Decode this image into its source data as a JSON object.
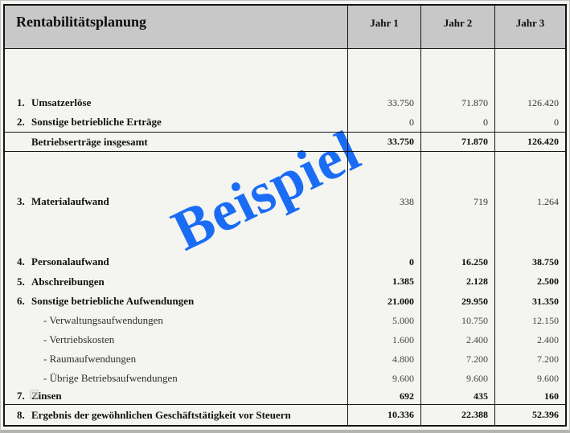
{
  "header": {
    "title": "Rentabilitätsplanung",
    "columns": [
      "Jahr 1",
      "Jahr 2",
      "Jahr 3"
    ]
  },
  "watermark": {
    "text": "Beispiel",
    "color": "#1b6cf5"
  },
  "rows": [
    {
      "num": "1.",
      "label": "Umsatzerlöse",
      "values": [
        "33.750",
        "71.870",
        "126.420"
      ]
    },
    {
      "num": "2.",
      "label": "Sonstige betriebliche Erträge",
      "values": [
        "0",
        "0",
        "0"
      ]
    },
    {
      "num": "",
      "label": "Betriebserträge insgesamt",
      "values": [
        "33.750",
        "71.870",
        "126.420"
      ]
    },
    {
      "num": "3.",
      "label": "Materialaufwand",
      "values": [
        "338",
        "719",
        "1.264"
      ]
    },
    {
      "num": "4.",
      "label": "Personalaufwand",
      "values": [
        "0",
        "16.250",
        "38.750"
      ]
    },
    {
      "num": "5.",
      "label": "Abschreibungen",
      "values": [
        "1.385",
        "2.128",
        "2.500"
      ]
    },
    {
      "num": "6.",
      "label": "Sonstige betriebliche Aufwendungen",
      "values": [
        "21.000",
        "29.950",
        "31.350"
      ]
    },
    {
      "num": "",
      "label": "- Verwaltungsaufwendungen",
      "values": [
        "5.000",
        "10.750",
        "12.150"
      ]
    },
    {
      "num": "",
      "label": "- Vertriebskosten",
      "values": [
        "1.600",
        "2.400",
        "2.400"
      ]
    },
    {
      "num": "",
      "label": "- Raumaufwendungen",
      "values": [
        "4.800",
        "7.200",
        "7.200"
      ]
    },
    {
      "num": "",
      "label": "- Übrige Betriebsaufwendungen",
      "values": [
        "9.600",
        "9.600",
        "9.600"
      ]
    },
    {
      "num": "7.",
      "label": "Zinsen",
      "values": [
        "692",
        "435",
        "160"
      ]
    },
    {
      "num": "8.",
      "label": "Ergebnis der gewöhnlichen Geschäftstätigkeit vor Steuern",
      "values": [
        "10.336",
        "22.388",
        "52.396"
      ]
    }
  ]
}
